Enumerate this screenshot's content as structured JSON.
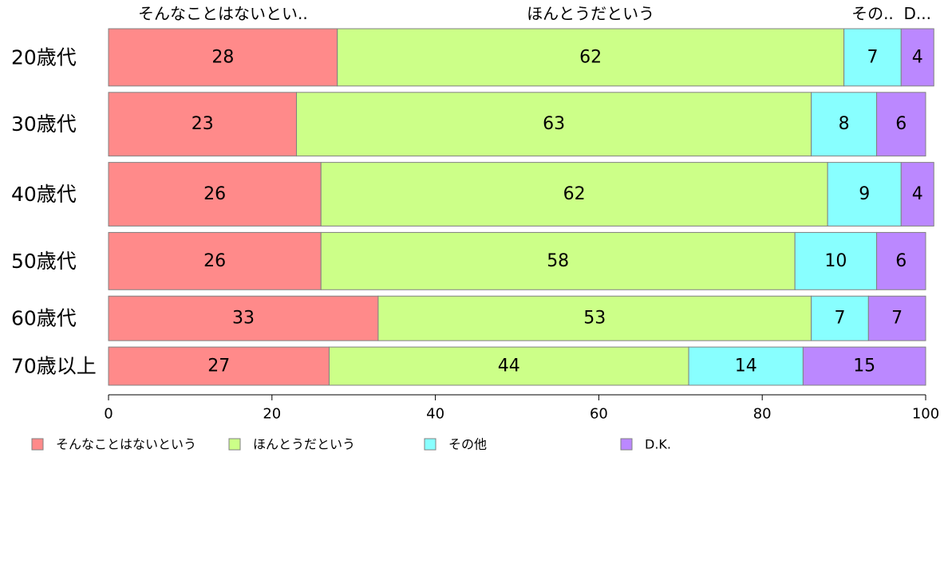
{
  "chart_data": {
    "type": "bar",
    "orientation": "horizontal",
    "stacked": true,
    "categories": [
      "20歳代",
      "30歳代",
      "40歳代",
      "50歳代",
      "60歳代",
      "70歳以上"
    ],
    "series": [
      {
        "name": "そんなことはないという",
        "color": "#ff8a8a",
        "values": [
          28,
          23,
          26,
          26,
          33,
          27
        ]
      },
      {
        "name": "ほんとうだという",
        "color": "#ccff88",
        "values": [
          62,
          63,
          62,
          58,
          53,
          44
        ]
      },
      {
        "name": "その他",
        "color": "#88ffff",
        "values": [
          7,
          8,
          9,
          10,
          7,
          14
        ]
      },
      {
        "name": "D.K.",
        "color": "#bb88ff",
        "values": [
          4,
          6,
          4,
          6,
          7,
          15
        ]
      }
    ],
    "top_labels": [
      "そんなことはないとい..",
      "ほんとうだという",
      "その..",
      "D..."
    ],
    "x_ticks": [
      "0",
      "20",
      "40",
      "60",
      "80",
      "100"
    ],
    "xlim": [
      0,
      100
    ],
    "bar_widths": [
      0.09,
      0.1,
      0.1,
      0.09,
      0.07,
      0.06
    ],
    "grid": false,
    "legend_position": "bottom"
  }
}
